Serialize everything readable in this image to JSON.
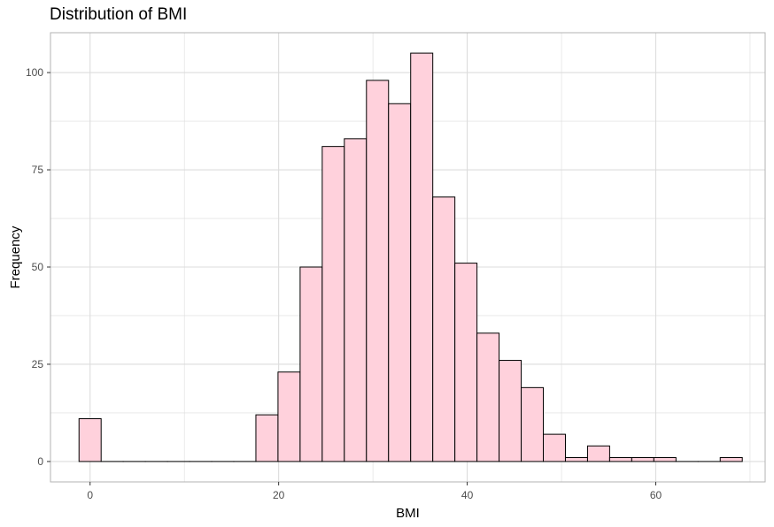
{
  "chart_data": {
    "type": "bar",
    "title": "Distribution of BMI",
    "xlabel": "BMI",
    "ylabel": "Frequency",
    "xlim": [
      -4.2,
      71.6
    ],
    "ylim": [
      -5.25,
      110.25
    ],
    "x_ticks": [
      0,
      20,
      40,
      60
    ],
    "y_ticks": [
      0,
      25,
      50,
      75,
      100
    ],
    "bin_width": 2.345,
    "bins": [
      {
        "x": 0.0,
        "count": 11
      },
      {
        "x": 2.345,
        "count": 0
      },
      {
        "x": 4.69,
        "count": 0
      },
      {
        "x": 7.035,
        "count": 0
      },
      {
        "x": 9.38,
        "count": 0
      },
      {
        "x": 11.725,
        "count": 0
      },
      {
        "x": 14.07,
        "count": 0
      },
      {
        "x": 16.415,
        "count": 0
      },
      {
        "x": 18.76,
        "count": 12
      },
      {
        "x": 21.105,
        "count": 23
      },
      {
        "x": 23.45,
        "count": 50
      },
      {
        "x": 25.795,
        "count": 81
      },
      {
        "x": 28.14,
        "count": 83
      },
      {
        "x": 30.485,
        "count": 98
      },
      {
        "x": 32.83,
        "count": 92
      },
      {
        "x": 35.175,
        "count": 105
      },
      {
        "x": 37.52,
        "count": 68
      },
      {
        "x": 39.865,
        "count": 51
      },
      {
        "x": 42.21,
        "count": 33
      },
      {
        "x": 44.555,
        "count": 26
      },
      {
        "x": 46.9,
        "count": 19
      },
      {
        "x": 49.245,
        "count": 7
      },
      {
        "x": 51.59,
        "count": 1
      },
      {
        "x": 53.935,
        "count": 4
      },
      {
        "x": 56.28,
        "count": 1
      },
      {
        "x": 58.625,
        "count": 1
      },
      {
        "x": 60.97,
        "count": 1
      },
      {
        "x": 63.315,
        "count": 0
      },
      {
        "x": 65.66,
        "count": 0
      },
      {
        "x": 68.005,
        "count": 1
      }
    ],
    "grid": true,
    "fill_color": "#FFD1DC",
    "edge_color": "#000000",
    "grid_color": "#dcdcdc",
    "panel_border_color": "#b3b3b3"
  }
}
